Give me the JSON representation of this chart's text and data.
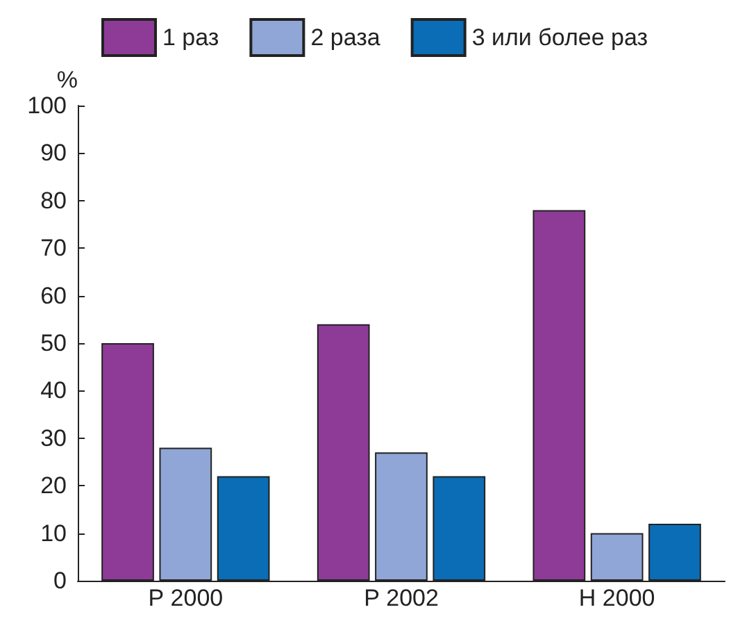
{
  "chart_data": {
    "type": "bar",
    "ylabel": "%",
    "categories": [
      "Р 2000",
      "Р 2002",
      "Н 2000"
    ],
    "series": [
      {
        "name": "1 раз",
        "color": "#8e3b97",
        "values": [
          50,
          54,
          78
        ]
      },
      {
        "name": "2 раза",
        "color": "#8fa6d6",
        "values": [
          28,
          27,
          10
        ]
      },
      {
        "name": "3 или более раз",
        "color": "#0a6db5",
        "values": [
          22,
          22,
          12
        ]
      }
    ],
    "ylim": [
      0,
      100
    ],
    "yticks": [
      0,
      10,
      20,
      30,
      40,
      50,
      60,
      70,
      80,
      90,
      100
    ],
    "grid": false,
    "legend": "top"
  }
}
